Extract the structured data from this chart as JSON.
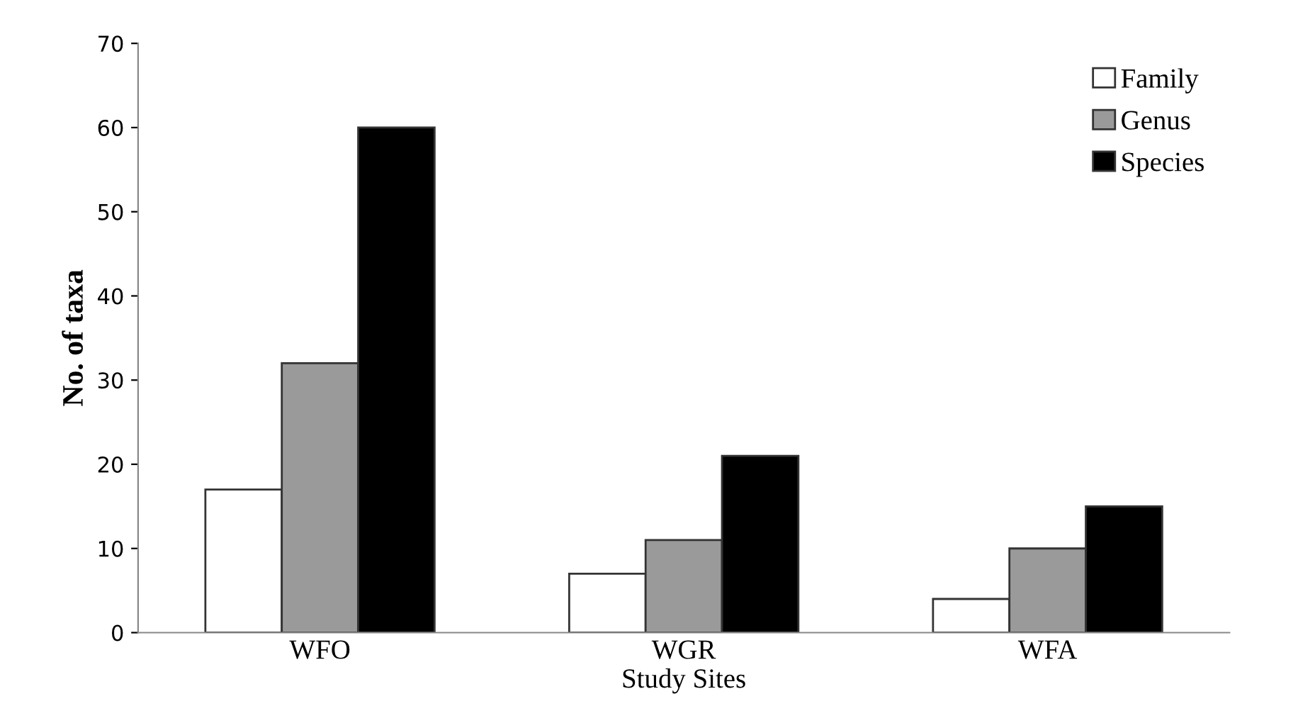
{
  "chart_data": {
    "type": "bar",
    "xlabel": "Study Sites",
    "ylabel": "No. of taxa",
    "categories": [
      "WFO",
      "WGR",
      "WFA"
    ],
    "series": [
      {
        "name": "Family",
        "color": "#ffffff",
        "values": [
          17,
          7,
          4
        ]
      },
      {
        "name": "Genus",
        "color": "#9a9a9a",
        "values": [
          32,
          11,
          10
        ]
      },
      {
        "name": "Species",
        "color": "#000000",
        "values": [
          60,
          21,
          15
        ]
      }
    ],
    "ylim": [
      0,
      70
    ],
    "yticks": [
      0,
      10,
      20,
      30,
      40,
      50,
      60,
      70
    ],
    "grid": false,
    "legend": "top right"
  }
}
